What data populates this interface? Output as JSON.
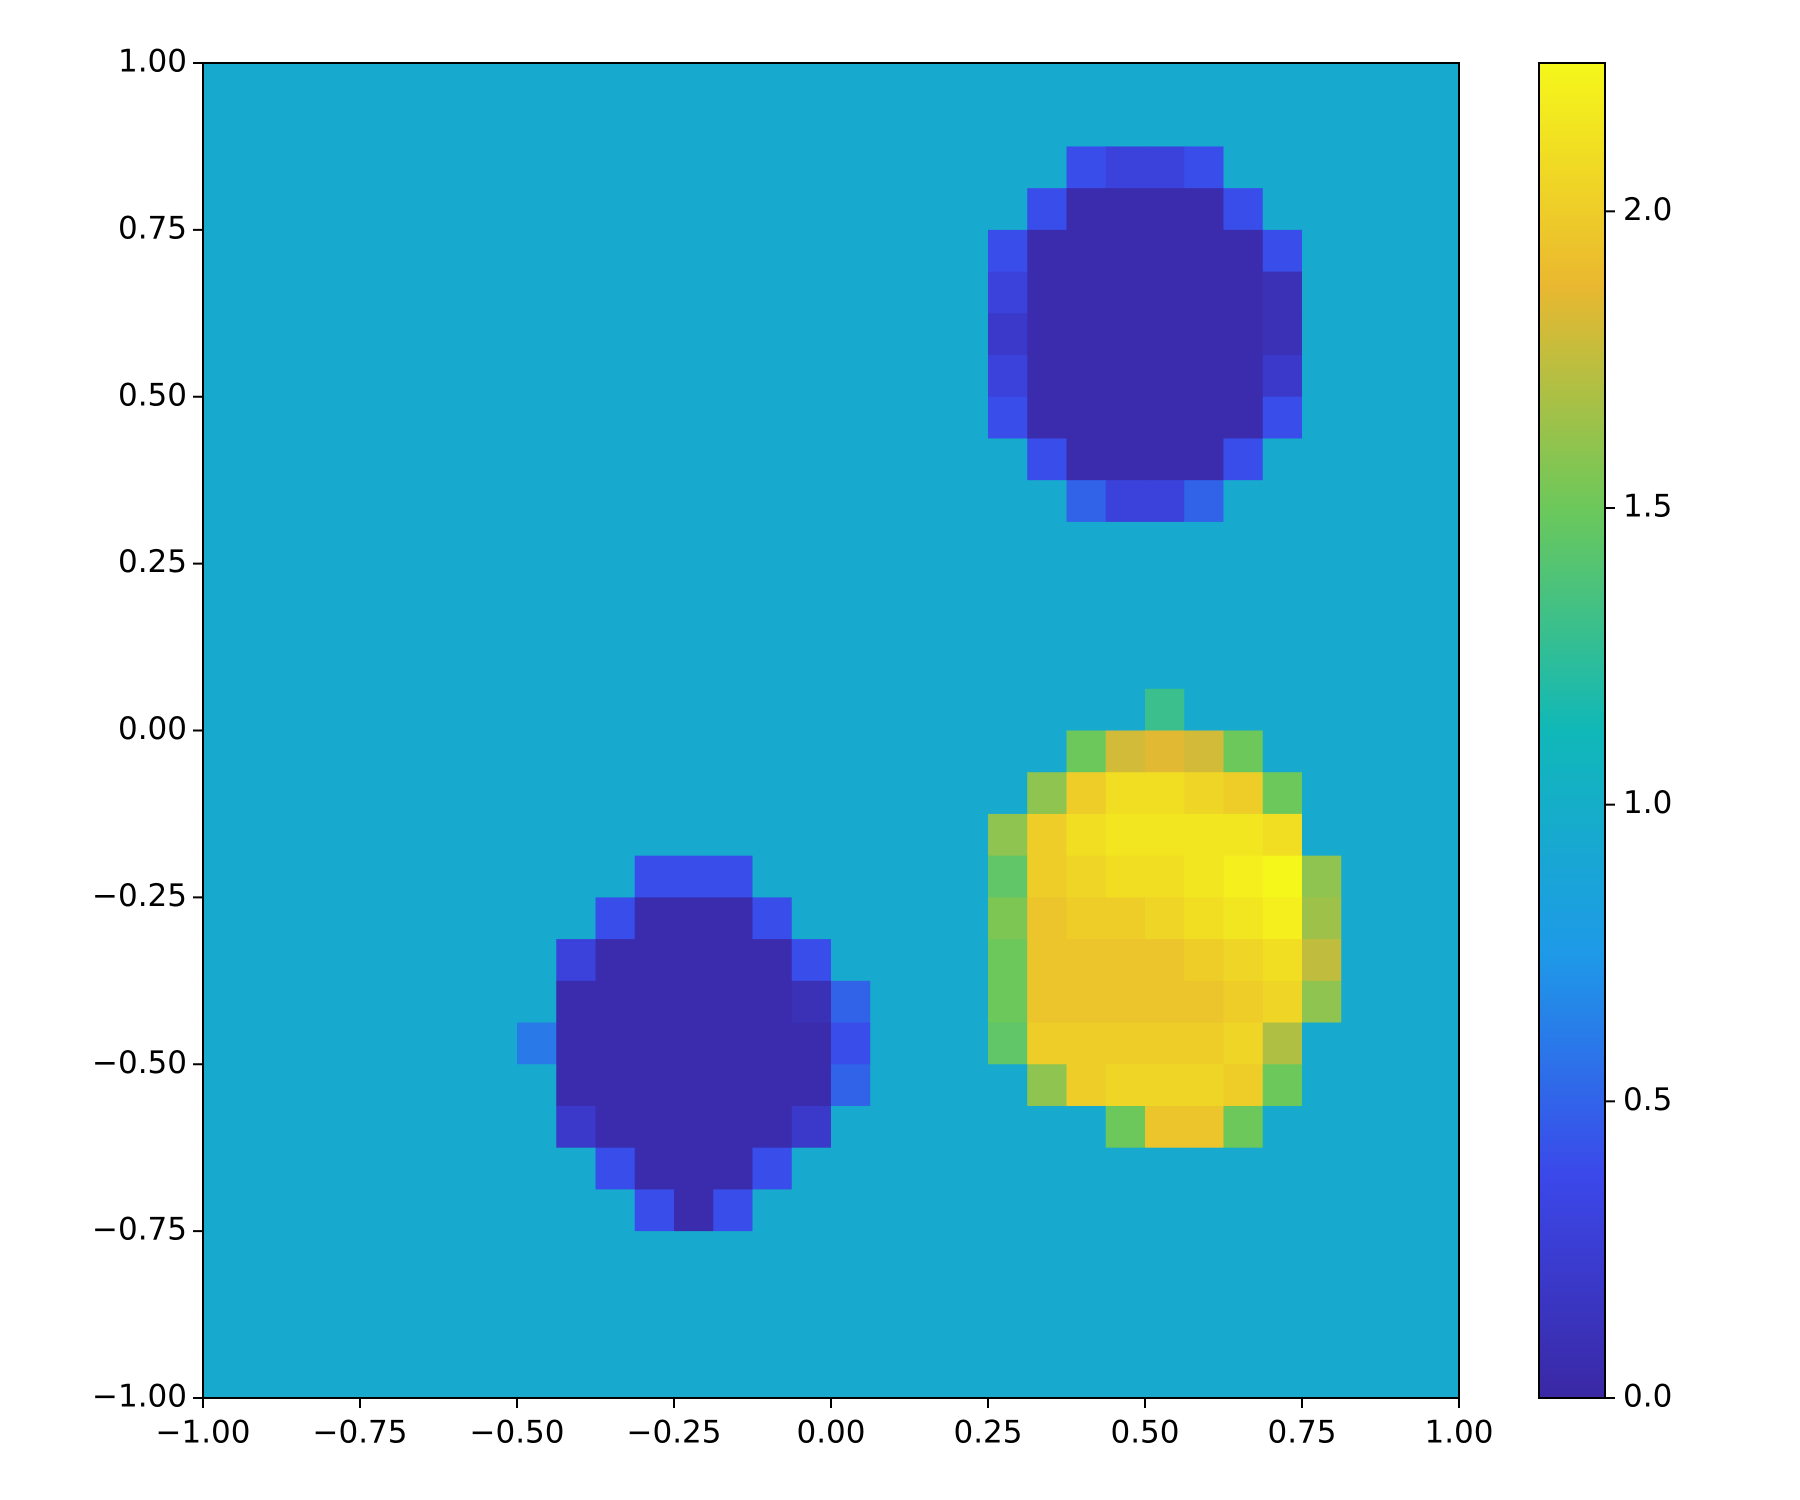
{
  "chart_data": {
    "type": "heatmap",
    "xlim": [
      -1,
      1
    ],
    "ylim": [
      -1,
      1
    ],
    "clim": [
      0,
      2.25
    ],
    "xticks": [
      {
        "value": -1,
        "label": "−1.00"
      },
      {
        "value": -0.75,
        "label": "−0.75"
      },
      {
        "value": -0.5,
        "label": "−0.50"
      },
      {
        "value": -0.25,
        "label": "−0.25"
      },
      {
        "value": 0,
        "label": "0.00"
      },
      {
        "value": 0.25,
        "label": "0.25"
      },
      {
        "value": 0.5,
        "label": "0.50"
      },
      {
        "value": 0.75,
        "label": "0.75"
      },
      {
        "value": 1,
        "label": "1.00"
      }
    ],
    "yticks": [
      {
        "value": -1,
        "label": "−1.00"
      },
      {
        "value": -0.75,
        "label": "−0.75"
      },
      {
        "value": -0.5,
        "label": "−0.50"
      },
      {
        "value": -0.25,
        "label": "−0.25"
      },
      {
        "value": 0,
        "label": "0.00"
      },
      {
        "value": 0.25,
        "label": "0.25"
      },
      {
        "value": 0.5,
        "label": "0.50"
      },
      {
        "value": 0.75,
        "label": "0.75"
      },
      {
        "value": 1,
        "label": "1.00"
      }
    ],
    "cticks": [
      {
        "value": 0,
        "label": "0.0"
      },
      {
        "value": 0.5,
        "label": "0.5"
      },
      {
        "value": 1,
        "label": "1.0"
      },
      {
        "value": 1.5,
        "label": "1.5"
      },
      {
        "value": 2,
        "label": "2.0"
      }
    ],
    "colormap": [
      "#3a28a4",
      "#3b48ea",
      "#1e9ae8",
      "#10b8b8",
      "#6cc85a",
      "#eab830",
      "#f5f71a"
    ],
    "z": [
      [
        0.95,
        0.95,
        0.95,
        0.95,
        0.95,
        0.95,
        0.95,
        0.95,
        0.95,
        0.95,
        0.95,
        0.95,
        0.95,
        0.95,
        0.95,
        0.95,
        0.95,
        0.95,
        0.95,
        0.95,
        0.95,
        0.95,
        0.95,
        0.95,
        0.95,
        0.95,
        0.95,
        0.95,
        0.95,
        0.95,
        0.95,
        0.95
      ],
      [
        0.95,
        0.95,
        0.95,
        0.95,
        0.95,
        0.95,
        0.95,
        0.95,
        0.95,
        0.95,
        0.95,
        0.95,
        0.95,
        0.95,
        0.95,
        0.95,
        0.95,
        0.95,
        0.95,
        0.95,
        0.95,
        0.95,
        0.95,
        0.95,
        0.95,
        0.95,
        0.95,
        0.95,
        0.95,
        0.95,
        0.95,
        0.95
      ],
      [
        0.95,
        0.95,
        0.95,
        0.95,
        0.95,
        0.95,
        0.95,
        0.95,
        0.95,
        0.95,
        0.95,
        0.95,
        0.95,
        0.95,
        0.95,
        0.95,
        0.95,
        0.95,
        0.95,
        0.95,
        0.95,
        0.95,
        0.4,
        0.3,
        0.3,
        0.4,
        0.95,
        0.95,
        0.95,
        0.95,
        0.95,
        0.95
      ],
      [
        0.95,
        0.95,
        0.95,
        0.95,
        0.95,
        0.95,
        0.95,
        0.95,
        0.95,
        0.95,
        0.95,
        0.95,
        0.95,
        0.95,
        0.95,
        0.95,
        0.95,
        0.95,
        0.95,
        0.95,
        0.95,
        0.4,
        0.05,
        0.05,
        0.05,
        0.05,
        0.4,
        0.95,
        0.95,
        0.95,
        0.95,
        0.95
      ],
      [
        0.95,
        0.95,
        0.95,
        0.95,
        0.95,
        0.95,
        0.95,
        0.95,
        0.95,
        0.95,
        0.95,
        0.95,
        0.95,
        0.95,
        0.95,
        0.95,
        0.95,
        0.95,
        0.95,
        0.95,
        0.4,
        0.05,
        0.05,
        0.05,
        0.05,
        0.05,
        0.05,
        0.4,
        0.95,
        0.95,
        0.95,
        0.95
      ],
      [
        0.95,
        0.95,
        0.95,
        0.95,
        0.95,
        0.95,
        0.95,
        0.95,
        0.95,
        0.95,
        0.95,
        0.95,
        0.95,
        0.95,
        0.95,
        0.95,
        0.95,
        0.95,
        0.95,
        0.95,
        0.3,
        0.05,
        0.05,
        0.05,
        0.05,
        0.05,
        0.05,
        0.1,
        0.95,
        0.95,
        0.95,
        0.95
      ],
      [
        0.95,
        0.95,
        0.95,
        0.95,
        0.95,
        0.95,
        0.95,
        0.95,
        0.95,
        0.95,
        0.95,
        0.95,
        0.95,
        0.95,
        0.95,
        0.95,
        0.95,
        0.95,
        0.95,
        0.95,
        0.2,
        0.05,
        0.05,
        0.05,
        0.05,
        0.05,
        0.05,
        0.1,
        0.95,
        0.95,
        0.95,
        0.95
      ],
      [
        0.95,
        0.95,
        0.95,
        0.95,
        0.95,
        0.95,
        0.95,
        0.95,
        0.95,
        0.95,
        0.95,
        0.95,
        0.95,
        0.95,
        0.95,
        0.95,
        0.95,
        0.95,
        0.95,
        0.95,
        0.3,
        0.05,
        0.05,
        0.05,
        0.05,
        0.05,
        0.05,
        0.2,
        0.95,
        0.95,
        0.95,
        0.95
      ],
      [
        0.95,
        0.95,
        0.95,
        0.95,
        0.95,
        0.95,
        0.95,
        0.95,
        0.95,
        0.95,
        0.95,
        0.95,
        0.95,
        0.95,
        0.95,
        0.95,
        0.95,
        0.95,
        0.95,
        0.95,
        0.4,
        0.05,
        0.05,
        0.05,
        0.05,
        0.05,
        0.05,
        0.4,
        0.95,
        0.95,
        0.95,
        0.95
      ],
      [
        0.95,
        0.95,
        0.95,
        0.95,
        0.95,
        0.95,
        0.95,
        0.95,
        0.95,
        0.95,
        0.95,
        0.95,
        0.95,
        0.95,
        0.95,
        0.95,
        0.95,
        0.95,
        0.95,
        0.95,
        0.95,
        0.4,
        0.05,
        0.05,
        0.05,
        0.05,
        0.4,
        0.95,
        0.95,
        0.95,
        0.95,
        0.95
      ],
      [
        0.95,
        0.95,
        0.95,
        0.95,
        0.95,
        0.95,
        0.95,
        0.95,
        0.95,
        0.95,
        0.95,
        0.95,
        0.95,
        0.95,
        0.95,
        0.95,
        0.95,
        0.95,
        0.95,
        0.95,
        0.95,
        0.95,
        0.5,
        0.3,
        0.3,
        0.5,
        0.95,
        0.95,
        0.95,
        0.95,
        0.95,
        0.95
      ],
      [
        0.95,
        0.95,
        0.95,
        0.95,
        0.95,
        0.95,
        0.95,
        0.95,
        0.95,
        0.95,
        0.95,
        0.95,
        0.95,
        0.95,
        0.95,
        0.95,
        0.95,
        0.95,
        0.95,
        0.95,
        0.95,
        0.95,
        0.95,
        0.95,
        0.95,
        0.95,
        0.95,
        0.95,
        0.95,
        0.95,
        0.95,
        0.95
      ],
      [
        0.95,
        0.95,
        0.95,
        0.95,
        0.95,
        0.95,
        0.95,
        0.95,
        0.95,
        0.95,
        0.95,
        0.95,
        0.95,
        0.95,
        0.95,
        0.95,
        0.95,
        0.95,
        0.95,
        0.95,
        0.95,
        0.95,
        0.95,
        0.95,
        0.95,
        0.95,
        0.95,
        0.95,
        0.95,
        0.95,
        0.95,
        0.95
      ],
      [
        0.95,
        0.95,
        0.95,
        0.95,
        0.95,
        0.95,
        0.95,
        0.95,
        0.95,
        0.95,
        0.95,
        0.95,
        0.95,
        0.95,
        0.95,
        0.95,
        0.95,
        0.95,
        0.95,
        0.95,
        0.95,
        0.95,
        0.95,
        0.95,
        0.95,
        0.95,
        0.95,
        0.95,
        0.95,
        0.95,
        0.95,
        0.95
      ],
      [
        0.95,
        0.95,
        0.95,
        0.95,
        0.95,
        0.95,
        0.95,
        0.95,
        0.95,
        0.95,
        0.95,
        0.95,
        0.95,
        0.95,
        0.95,
        0.95,
        0.95,
        0.95,
        0.95,
        0.95,
        0.95,
        0.95,
        0.95,
        0.95,
        0.95,
        0.95,
        0.95,
        0.95,
        0.95,
        0.95,
        0.95,
        0.95
      ],
      [
        0.95,
        0.95,
        0.95,
        0.95,
        0.95,
        0.95,
        0.95,
        0.95,
        0.95,
        0.95,
        0.95,
        0.95,
        0.95,
        0.95,
        0.95,
        0.95,
        0.95,
        0.95,
        0.95,
        0.95,
        0.95,
        0.95,
        0.95,
        0.95,
        1.3,
        0.95,
        0.95,
        0.95,
        0.95,
        0.95,
        0.95,
        0.95
      ],
      [
        0.95,
        0.95,
        0.95,
        0.95,
        0.95,
        0.95,
        0.95,
        0.95,
        0.95,
        0.95,
        0.95,
        0.95,
        0.95,
        0.95,
        0.95,
        0.95,
        0.95,
        0.95,
        0.95,
        0.95,
        0.95,
        0.95,
        1.5,
        1.8,
        1.85,
        1.8,
        1.5,
        0.95,
        0.95,
        0.95,
        0.95,
        0.95
      ],
      [
        0.95,
        0.95,
        0.95,
        0.95,
        0.95,
        0.95,
        0.95,
        0.95,
        0.95,
        0.95,
        0.95,
        0.95,
        0.95,
        0.95,
        0.95,
        0.95,
        0.95,
        0.95,
        0.95,
        0.95,
        0.95,
        1.6,
        2.0,
        2.1,
        2.1,
        2.05,
        2.0,
        1.5,
        0.95,
        0.95,
        0.95,
        0.95
      ],
      [
        0.95,
        0.95,
        0.95,
        0.95,
        0.95,
        0.95,
        0.95,
        0.95,
        0.95,
        0.95,
        0.95,
        0.95,
        0.95,
        0.95,
        0.95,
        0.95,
        0.95,
        0.95,
        0.95,
        0.95,
        1.6,
        2.0,
        2.1,
        2.15,
        2.15,
        2.15,
        2.15,
        2.1,
        0.95,
        0.95,
        0.95,
        0.95
      ],
      [
        0.95,
        0.95,
        0.95,
        0.95,
        0.95,
        0.95,
        0.95,
        0.95,
        0.95,
        0.95,
        0.95,
        0.4,
        0.4,
        0.4,
        0.95,
        0.95,
        0.95,
        0.95,
        0.95,
        0.95,
        1.45,
        2.0,
        2.05,
        2.1,
        2.1,
        2.15,
        2.2,
        2.25,
        1.6,
        0.95,
        0.95,
        0.95
      ],
      [
        0.95,
        0.95,
        0.95,
        0.95,
        0.95,
        0.95,
        0.95,
        0.95,
        0.95,
        0.95,
        0.4,
        0.05,
        0.05,
        0.05,
        0.4,
        0.95,
        0.95,
        0.95,
        0.95,
        0.95,
        1.55,
        1.95,
        2.0,
        2.0,
        2.05,
        2.1,
        2.15,
        2.2,
        1.65,
        0.95,
        0.95,
        0.95
      ],
      [
        0.95,
        0.95,
        0.95,
        0.95,
        0.95,
        0.95,
        0.95,
        0.95,
        0.95,
        0.3,
        0.05,
        0.05,
        0.05,
        0.05,
        0.05,
        0.4,
        0.95,
        0.95,
        0.95,
        0.95,
        1.5,
        1.95,
        1.95,
        1.95,
        1.95,
        2.0,
        2.05,
        2.1,
        1.75,
        0.95,
        0.95,
        0.95
      ],
      [
        0.95,
        0.95,
        0.95,
        0.95,
        0.95,
        0.95,
        0.95,
        0.95,
        0.95,
        0.05,
        0.05,
        0.05,
        0.05,
        0.05,
        0.05,
        0.1,
        0.5,
        0.95,
        0.95,
        0.95,
        1.5,
        1.95,
        1.95,
        1.95,
        1.95,
        1.95,
        2.0,
        2.05,
        1.6,
        0.95,
        0.95,
        0.95
      ],
      [
        0.95,
        0.95,
        0.95,
        0.95,
        0.95,
        0.95,
        0.95,
        0.95,
        0.6,
        0.05,
        0.05,
        0.05,
        0.05,
        0.05,
        0.05,
        0.05,
        0.4,
        0.95,
        0.95,
        0.95,
        1.45,
        2.0,
        2.0,
        2.0,
        2.0,
        2.0,
        2.05,
        1.7,
        0.95,
        0.95,
        0.95,
        0.95
      ],
      [
        0.95,
        0.95,
        0.95,
        0.95,
        0.95,
        0.95,
        0.95,
        0.95,
        0.95,
        0.05,
        0.05,
        0.05,
        0.05,
        0.05,
        0.05,
        0.05,
        0.5,
        0.95,
        0.95,
        0.95,
        0.95,
        1.6,
        2.0,
        2.05,
        2.05,
        2.05,
        2.0,
        1.5,
        0.95,
        0.95,
        0.95,
        0.95
      ],
      [
        0.95,
        0.95,
        0.95,
        0.95,
        0.95,
        0.95,
        0.95,
        0.95,
        0.95,
        0.2,
        0.05,
        0.05,
        0.05,
        0.05,
        0.05,
        0.2,
        0.95,
        0.95,
        0.95,
        0.95,
        0.95,
        0.95,
        0.95,
        1.5,
        1.95,
        1.95,
        1.5,
        0.95,
        0.95,
        0.95,
        0.95,
        0.95
      ],
      [
        0.95,
        0.95,
        0.95,
        0.95,
        0.95,
        0.95,
        0.95,
        0.95,
        0.95,
        0.95,
        0.4,
        0.05,
        0.05,
        0.05,
        0.4,
        0.95,
        0.95,
        0.95,
        0.95,
        0.95,
        0.95,
        0.95,
        0.95,
        0.95,
        0.95,
        0.95,
        0.95,
        0.95,
        0.95,
        0.95,
        0.95,
        0.95
      ],
      [
        0.95,
        0.95,
        0.95,
        0.95,
        0.95,
        0.95,
        0.95,
        0.95,
        0.95,
        0.95,
        0.95,
        0.4,
        0.05,
        0.4,
        0.95,
        0.95,
        0.95,
        0.95,
        0.95,
        0.95,
        0.95,
        0.95,
        0.95,
        0.95,
        0.95,
        0.95,
        0.95,
        0.95,
        0.95,
        0.95,
        0.95,
        0.95
      ],
      [
        0.95,
        0.95,
        0.95,
        0.95,
        0.95,
        0.95,
        0.95,
        0.95,
        0.95,
        0.95,
        0.95,
        0.95,
        0.95,
        0.95,
        0.95,
        0.95,
        0.95,
        0.95,
        0.95,
        0.95,
        0.95,
        0.95,
        0.95,
        0.95,
        0.95,
        0.95,
        0.95,
        0.95,
        0.95,
        0.95,
        0.95,
        0.95
      ],
      [
        0.95,
        0.95,
        0.95,
        0.95,
        0.95,
        0.95,
        0.95,
        0.95,
        0.95,
        0.95,
        0.95,
        0.95,
        0.95,
        0.95,
        0.95,
        0.95,
        0.95,
        0.95,
        0.95,
        0.95,
        0.95,
        0.95,
        0.95,
        0.95,
        0.95,
        0.95,
        0.95,
        0.95,
        0.95,
        0.95,
        0.95,
        0.95
      ],
      [
        0.95,
        0.95,
        0.95,
        0.95,
        0.95,
        0.95,
        0.95,
        0.95,
        0.95,
        0.95,
        0.95,
        0.95,
        0.95,
        0.95,
        0.95,
        0.95,
        0.95,
        0.95,
        0.95,
        0.95,
        0.95,
        0.95,
        0.95,
        0.95,
        0.95,
        0.95,
        0.95,
        0.95,
        0.95,
        0.95,
        0.95,
        0.95
      ],
      [
        0.95,
        0.95,
        0.95,
        0.95,
        0.95,
        0.95,
        0.95,
        0.95,
        0.95,
        0.95,
        0.95,
        0.95,
        0.95,
        0.95,
        0.95,
        0.95,
        0.95,
        0.95,
        0.95,
        0.95,
        0.95,
        0.95,
        0.95,
        0.95,
        0.95,
        0.95,
        0.95,
        0.95,
        0.95,
        0.95,
        0.95,
        0.95
      ]
    ]
  }
}
